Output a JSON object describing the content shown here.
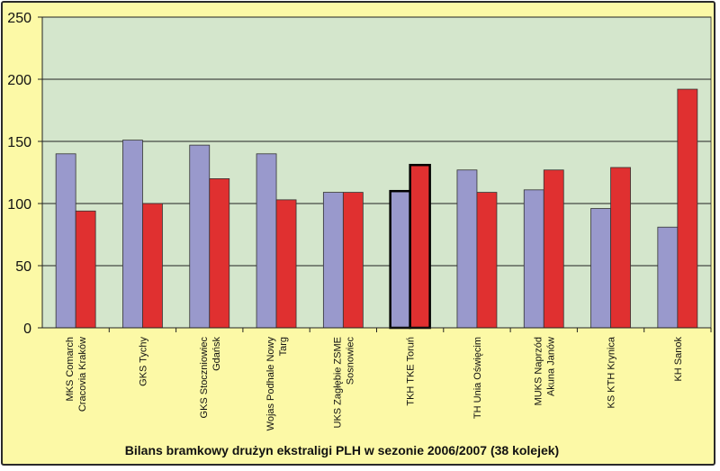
{
  "chart_data": {
    "type": "bar",
    "title": "Bilans bramkowy drużyn ekstraligi PLH w sezonie 2006/2007 (38 kolejek)",
    "xlabel": "",
    "ylabel": "",
    "ylim": [
      0,
      250
    ],
    "yticks": [
      0,
      50,
      100,
      150,
      200,
      250
    ],
    "grid": true,
    "legend": "none",
    "categories": [
      [
        "MKS Comarch",
        "Cracovia Kraków"
      ],
      [
        "GKS Tychy"
      ],
      [
        "GKS Stoczniowiec",
        "Gdańsk"
      ],
      [
        "Wojas Podhale Nowy",
        "Targ"
      ],
      [
        "UKS Zagłębie ZSME",
        "Sosnowiec"
      ],
      [
        "TKH TKE Toruń"
      ],
      [
        "TH Unia Oświęcim"
      ],
      [
        "MUKS Naprzód",
        "Akuna Janów"
      ],
      [
        "KS KTH Krynica"
      ],
      [
        "KH Sanok"
      ]
    ],
    "series": [
      {
        "color": "#9999cc",
        "values": [
          140,
          151,
          147,
          140,
          109,
          110,
          127,
          111,
          96,
          81
        ]
      },
      {
        "color": "#e03030",
        "values": [
          94,
          100,
          120,
          103,
          109,
          131,
          109,
          127,
          129,
          192
        ]
      }
    ],
    "highlighted_category": "TKH TKE Toruń",
    "colors": {
      "plot_background": "#d4e6cc",
      "page_background": "#fcf9a6"
    }
  }
}
